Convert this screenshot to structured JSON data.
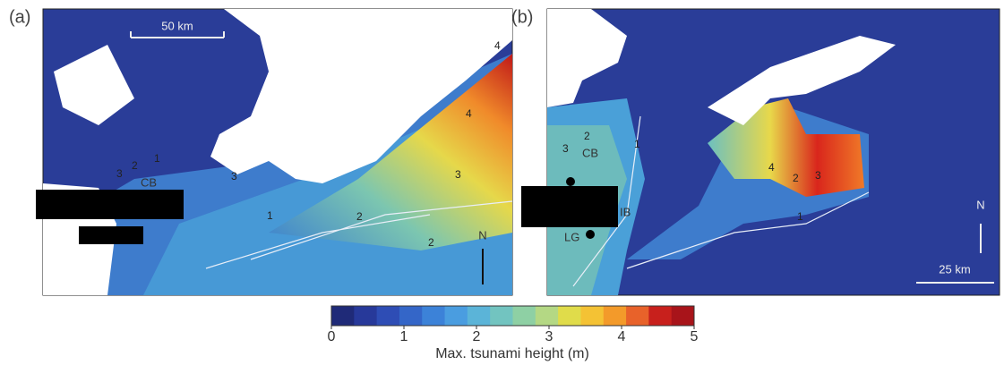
{
  "panels": [
    {
      "tag": "(a)",
      "scale_bar": "50 km",
      "north": "N",
      "places": [
        "CB"
      ],
      "contours": [
        "1",
        "2",
        "3",
        "3",
        "3",
        "2",
        "2",
        "1",
        "4",
        "4"
      ]
    },
    {
      "tag": "(b)",
      "scale_bar": "25 km",
      "north": "N",
      "places": [
        "CB",
        "IB",
        "LG"
      ],
      "contours": [
        "3",
        "2",
        "1",
        "2",
        "3",
        "4",
        "1"
      ]
    }
  ],
  "colorbar": {
    "ticks": [
      0,
      1,
      2,
      3,
      4,
      5
    ],
    "range": [
      0,
      5
    ],
    "label": "Max. tsunami height (m)"
  }
}
